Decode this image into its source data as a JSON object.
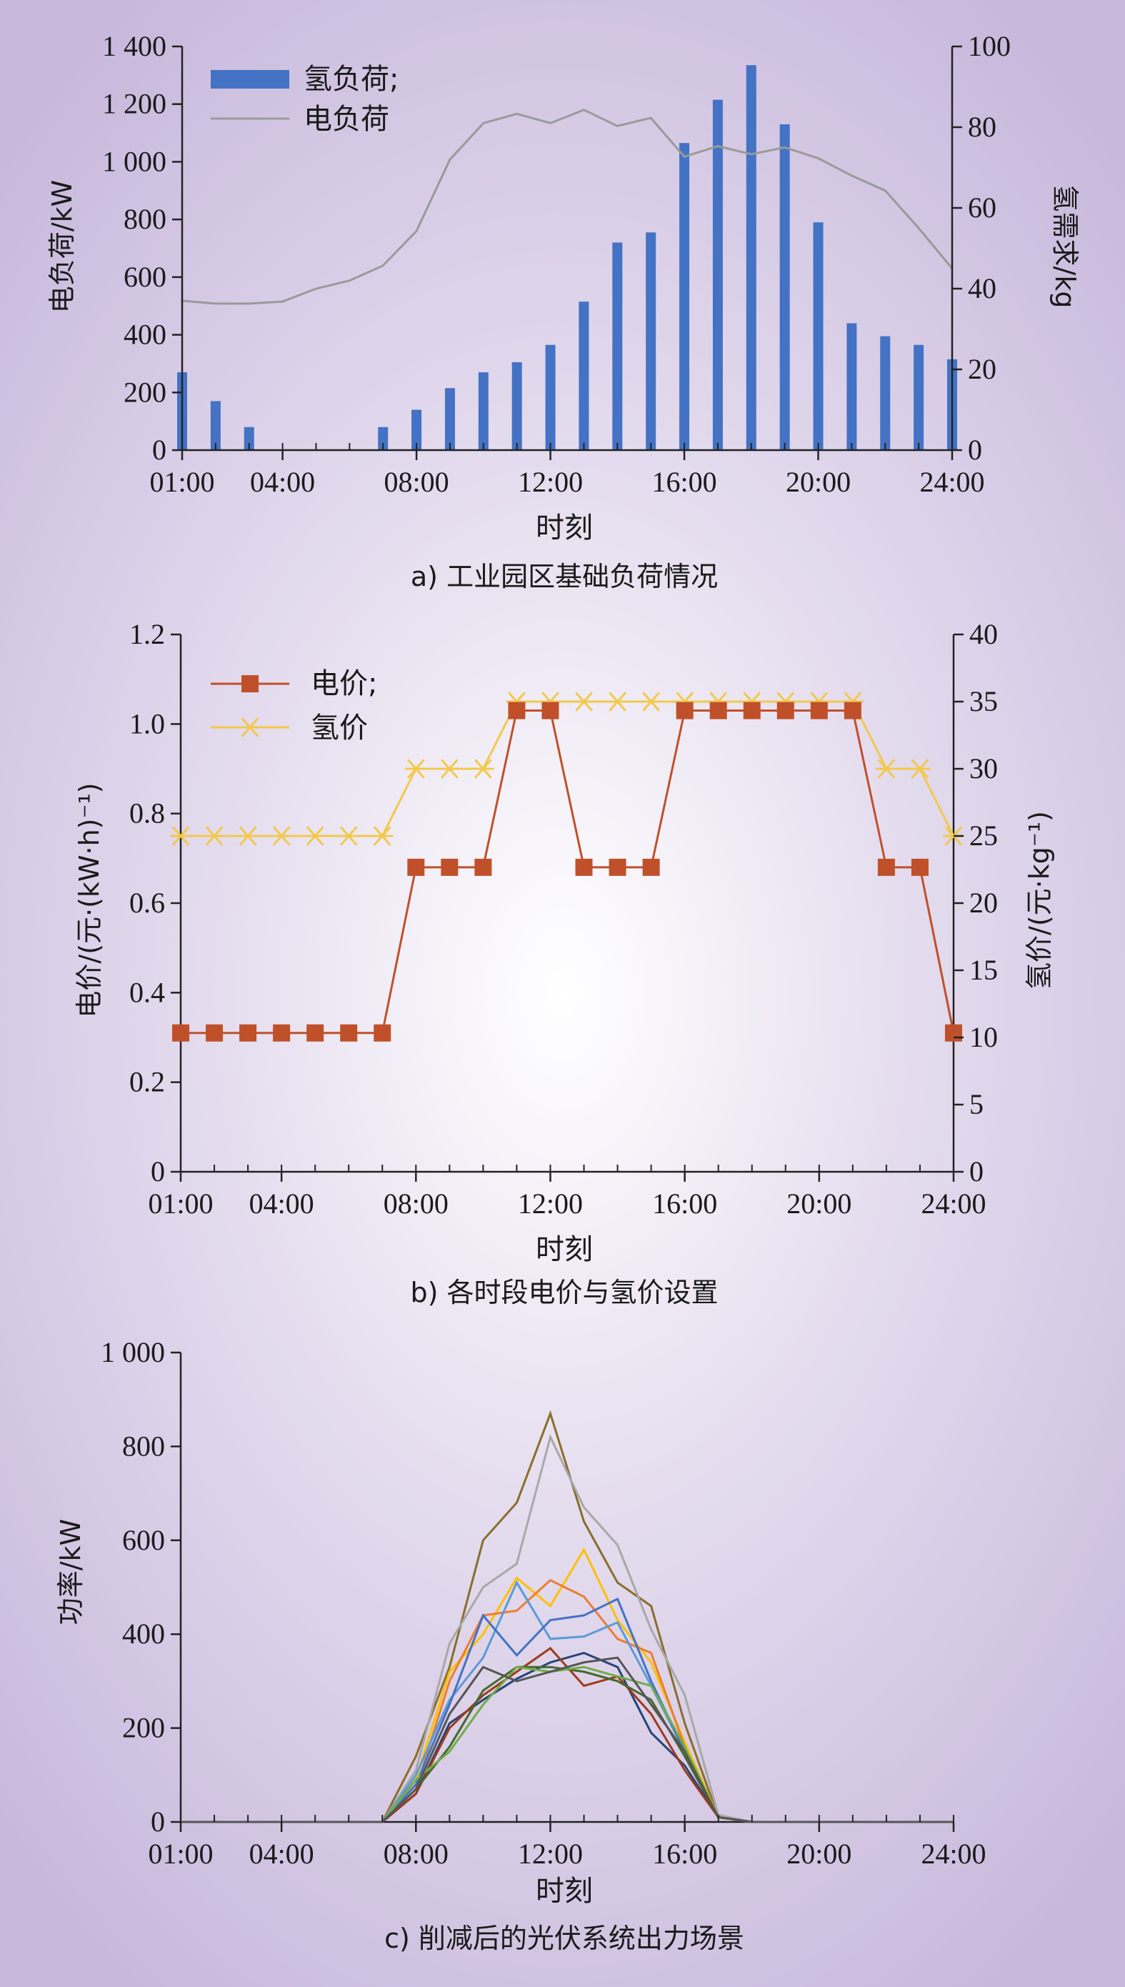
{
  "chart_data": [
    {
      "type": "bar+line",
      "caption": "a) 工业园区基础负荷情况",
      "xlabel": "时刻",
      "ylabel_left": "电负荷/kW",
      "ylabel_right": "氢需求/kg",
      "ylim_left": [
        0,
        1400
      ],
      "ylim_right": [
        0,
        100
      ],
      "yticks_left": [
        "0",
        "200",
        "400",
        "600",
        "800",
        "1 000",
        "1 200",
        "1 400"
      ],
      "yticks_right": [
        "0",
        "20",
        "40",
        "60",
        "80",
        "100"
      ],
      "xticks": [
        "01:00",
        "04:00",
        "08:00",
        "12:00",
        "16:00",
        "20:00",
        "24:00"
      ],
      "legend_placement": "top-left",
      "series": [
        {
          "name": "氢负荷;",
          "kind": "bar",
          "axis": "left",
          "color": "#4472c4",
          "values": [
            270,
            170,
            80,
            0,
            0,
            0,
            80,
            140,
            215,
            270,
            305,
            365,
            515,
            720,
            755,
            1065,
            1215,
            1335,
            1130,
            790,
            440,
            395,
            365,
            315
          ]
        },
        {
          "name": "电负荷",
          "kind": "line",
          "axis": "right",
          "color": "#9a9a9a",
          "values": [
            37,
            36.3,
            36.3,
            36.8,
            40,
            42,
            45.7,
            54.3,
            72,
            81,
            83.3,
            81,
            84.3,
            80.3,
            82.3,
            72.7,
            75.3,
            73.3,
            75,
            72.3,
            68,
            64.3,
            55,
            45
          ]
        }
      ]
    },
    {
      "type": "line",
      "caption": "b) 各时段电价与氢价设置",
      "xlabel": "时刻",
      "ylabel_left": "电价/(元·(kW·h)⁻¹)",
      "ylabel_right": "氢价/(元·kg⁻¹)",
      "ylim_left": [
        0,
        1.2
      ],
      "ylim_right": [
        0,
        40
      ],
      "yticks_left": [
        "0",
        "0.2",
        "0.4",
        "0.6",
        "0.8",
        "1.0",
        "1.2"
      ],
      "yticks_right": [
        "0",
        "5",
        "10",
        "15",
        "20",
        "25",
        "30",
        "35",
        "40"
      ],
      "xticks": [
        "01:00",
        "04:00",
        "08:00",
        "12:00",
        "16:00",
        "20:00",
        "24:00"
      ],
      "legend_placement": "top-left",
      "series": [
        {
          "name": "电价;",
          "axis": "left",
          "marker": "square",
          "color": "#c0502a",
          "values": [
            0.31,
            0.31,
            0.31,
            0.31,
            0.31,
            0.31,
            0.31,
            0.68,
            0.68,
            0.68,
            1.03,
            1.03,
            0.68,
            0.68,
            0.68,
            1.03,
            1.03,
            1.03,
            1.03,
            1.03,
            1.03,
            0.68,
            0.68,
            0.31
          ]
        },
        {
          "name": "氢价",
          "axis": "right",
          "marker": "asterisk",
          "color": "#f2c94c",
          "values": [
            25,
            25,
            25,
            25,
            25,
            25,
            25,
            30,
            30,
            30,
            35,
            35,
            35,
            35,
            35,
            35,
            35,
            35,
            35,
            35,
            35,
            30,
            30,
            25
          ]
        }
      ]
    },
    {
      "type": "line",
      "caption": "c) 削减后的光伏系统出力场景",
      "xlabel": "时刻",
      "ylabel": "功率/kW",
      "ylim": [
        0,
        1000
      ],
      "yticks": [
        "0",
        "200",
        "400",
        "600",
        "800",
        "1 000"
      ],
      "xticks": [
        "01:00",
        "04:00",
        "08:00",
        "12:00",
        "16:00",
        "20:00",
        "24:00"
      ],
      "series": [
        {
          "color": "#8b6d2a",
          "values": [
            0,
            0,
            0,
            0,
            0,
            0,
            0,
            140,
            330,
            600,
            680,
            870,
            640,
            510,
            460,
            210,
            10,
            0,
            0,
            0,
            0,
            0,
            0,
            0
          ]
        },
        {
          "color": "#a8a8a8",
          "values": [
            0,
            0,
            0,
            0,
            0,
            0,
            0,
            110,
            380,
            500,
            550,
            820,
            670,
            590,
            410,
            270,
            15,
            0,
            0,
            0,
            0,
            0,
            0,
            0
          ]
        },
        {
          "color": "#ffc000",
          "values": [
            0,
            0,
            0,
            0,
            0,
            0,
            0,
            90,
            320,
            400,
            520,
            460,
            580,
            430,
            340,
            170,
            10,
            0,
            0,
            0,
            0,
            0,
            0,
            0
          ]
        },
        {
          "color": "#ed7d31",
          "values": [
            0,
            0,
            0,
            0,
            0,
            0,
            0,
            70,
            300,
            440,
            450,
            515,
            480,
            390,
            360,
            160,
            10,
            0,
            0,
            0,
            0,
            0,
            0,
            0
          ]
        },
        {
          "color": "#5b9bd5",
          "values": [
            0,
            0,
            0,
            0,
            0,
            0,
            0,
            100,
            260,
            350,
            510,
            390,
            395,
            425,
            290,
            150,
            10,
            0,
            0,
            0,
            0,
            0,
            0,
            0
          ]
        },
        {
          "color": "#4472c4",
          "values": [
            0,
            0,
            0,
            0,
            0,
            0,
            0,
            80,
            250,
            440,
            355,
            430,
            440,
            475,
            300,
            150,
            10,
            0,
            0,
            0,
            0,
            0,
            0,
            0
          ]
        },
        {
          "color": "#264478",
          "values": [
            0,
            0,
            0,
            0,
            0,
            0,
            0,
            60,
            210,
            260,
            305,
            340,
            360,
            330,
            190,
            120,
            10,
            0,
            0,
            0,
            0,
            0,
            0,
            0
          ]
        },
        {
          "color": "#9e3a1c",
          "values": [
            0,
            0,
            0,
            0,
            0,
            0,
            0,
            60,
            200,
            270,
            320,
            370,
            290,
            310,
            230,
            110,
            10,
            0,
            0,
            0,
            0,
            0,
            0,
            0
          ]
        },
        {
          "color": "#43682b",
          "values": [
            0,
            0,
            0,
            0,
            0,
            0,
            0,
            70,
            160,
            280,
            330,
            330,
            320,
            300,
            260,
            140,
            10,
            0,
            0,
            0,
            0,
            0,
            0,
            0
          ]
        },
        {
          "color": "#70ad47",
          "values": [
            0,
            0,
            0,
            0,
            0,
            0,
            0,
            90,
            150,
            250,
            330,
            320,
            330,
            310,
            290,
            160,
            10,
            0,
            0,
            0,
            0,
            0,
            0,
            0
          ]
        },
        {
          "color": "#555555",
          "values": [
            0,
            0,
            0,
            0,
            0,
            0,
            0,
            70,
            230,
            330,
            300,
            320,
            340,
            350,
            250,
            150,
            10,
            0,
            0,
            0,
            0,
            0,
            0,
            0
          ]
        }
      ]
    }
  ]
}
